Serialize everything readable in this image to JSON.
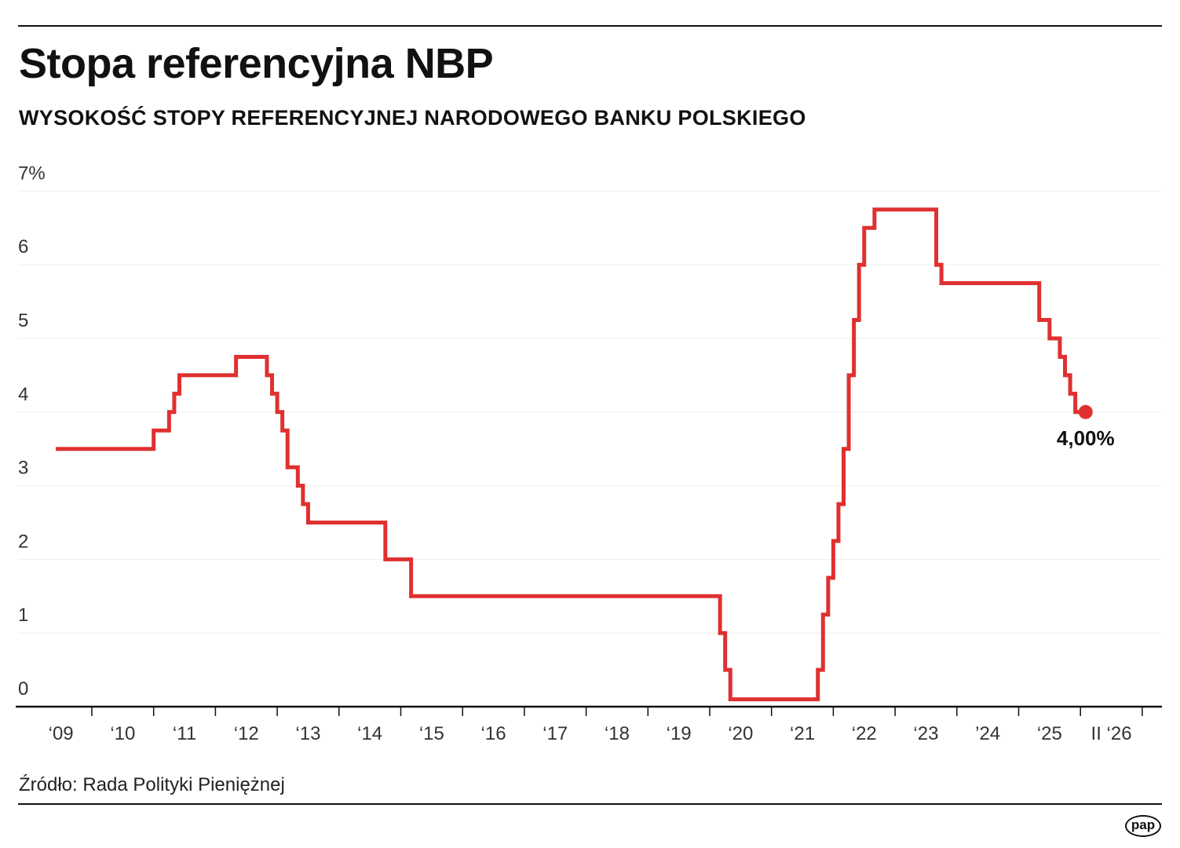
{
  "title": "Stopa referencyjna NBP",
  "subtitle": "WYSOKOŚĆ STOPY REFERENCYJNEJ NARODOWEGO BANKU POLSKIEGO",
  "source": "Źródło: Rada Polityki Pieniężnej",
  "logo": "pap",
  "colors": {
    "line": "#e03030",
    "text": "#111111",
    "grid": "#eeeeee"
  },
  "chart_data": {
    "type": "line",
    "step": true,
    "title": "Stopa referencyjna NBP",
    "xlabel": "",
    "ylabel": "",
    "ylim": [
      0,
      7
    ],
    "y_ticks": [
      0,
      1,
      2,
      3,
      4,
      5,
      6,
      7
    ],
    "y_tick_labels": [
      "0",
      "1",
      "2",
      "3",
      "4",
      "5",
      "6",
      "7%"
    ],
    "x_tick_labels": [
      "‘09",
      "‘10",
      "‘11",
      "‘12",
      "‘13",
      "‘14",
      "‘15",
      "‘16",
      "‘17",
      "‘18",
      "‘19",
      "‘20",
      "‘21",
      "‘22",
      "‘23",
      "’24",
      "‘25",
      "II ‘26"
    ],
    "grid": true,
    "end_label": "4,00%",
    "points": [
      [
        "2009-06",
        3.5
      ],
      [
        "2011-01",
        3.75
      ],
      [
        "2011-04",
        4.0
      ],
      [
        "2011-05",
        4.25
      ],
      [
        "2011-06",
        4.5
      ],
      [
        "2012-05",
        4.75
      ],
      [
        "2012-11",
        4.5
      ],
      [
        "2012-12",
        4.25
      ],
      [
        "2013-01",
        4.0
      ],
      [
        "2013-02",
        3.75
      ],
      [
        "2013-03",
        3.25
      ],
      [
        "2013-05",
        3.0
      ],
      [
        "2013-06",
        2.75
      ],
      [
        "2013-07",
        2.5
      ],
      [
        "2014-10",
        2.0
      ],
      [
        "2015-03",
        1.5
      ],
      [
        "2020-03",
        1.0
      ],
      [
        "2020-04",
        0.5
      ],
      [
        "2020-05",
        0.1
      ],
      [
        "2021-10",
        0.5
      ],
      [
        "2021-11",
        1.25
      ],
      [
        "2021-12",
        1.75
      ],
      [
        "2022-01",
        2.25
      ],
      [
        "2022-02",
        2.75
      ],
      [
        "2022-03",
        3.5
      ],
      [
        "2022-04",
        4.5
      ],
      [
        "2022-05",
        5.25
      ],
      [
        "2022-06",
        6.0
      ],
      [
        "2022-07",
        6.5
      ],
      [
        "2022-09",
        6.75
      ],
      [
        "2023-09",
        6.0
      ],
      [
        "2023-10",
        5.75
      ],
      [
        "2025-05",
        5.25
      ],
      [
        "2025-07",
        5.0
      ],
      [
        "2025-09",
        4.75
      ],
      [
        "2025-10",
        4.5
      ],
      [
        "2025-11",
        4.25
      ],
      [
        "2025-12",
        4.0
      ],
      [
        "2026-02",
        4.0
      ]
    ]
  }
}
